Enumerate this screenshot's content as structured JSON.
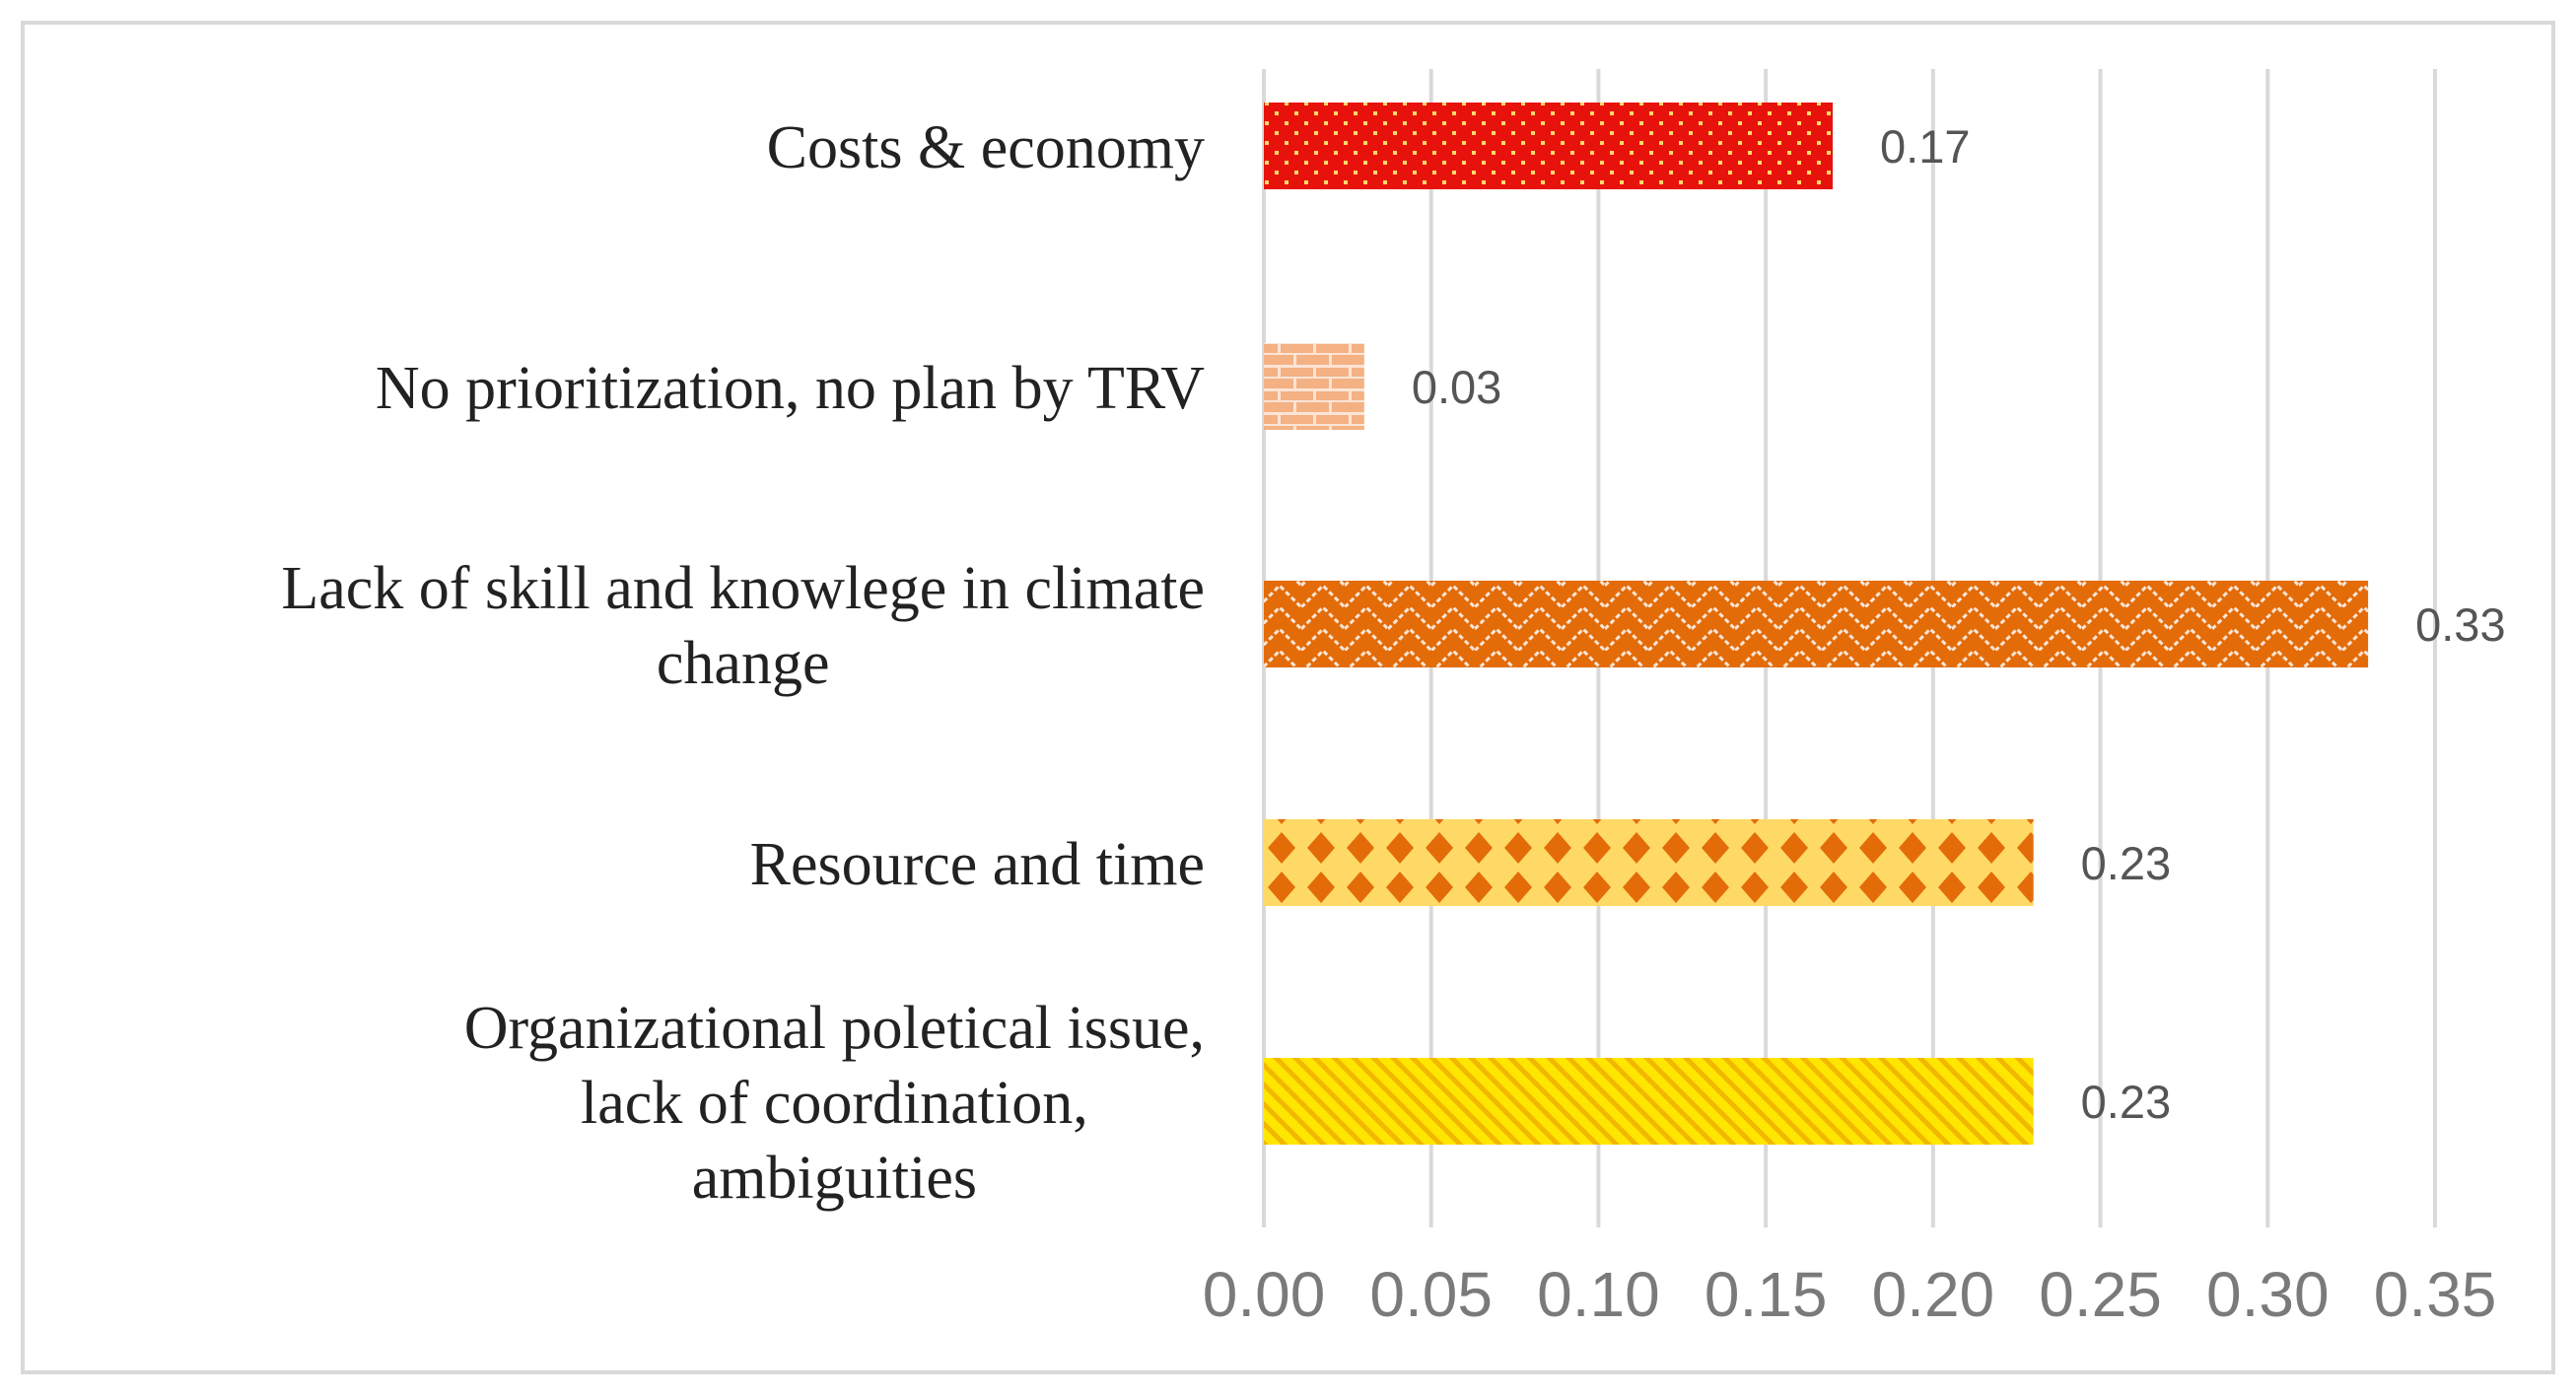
{
  "chart_data": {
    "type": "bar",
    "orientation": "horizontal",
    "title": "",
    "xlabel": "",
    "ylabel": "",
    "xlim": [
      0,
      0.35
    ],
    "x_ticks": [
      {
        "value": 0.0,
        "label": "0.00"
      },
      {
        "value": 0.05,
        "label": "0.05"
      },
      {
        "value": 0.1,
        "label": "0.10"
      },
      {
        "value": 0.15,
        "label": "0.15"
      },
      {
        "value": 0.2,
        "label": "0.20"
      },
      {
        "value": 0.25,
        "label": "0.25"
      },
      {
        "value": 0.3,
        "label": "0.30"
      },
      {
        "value": 0.35,
        "label": "0.35"
      }
    ],
    "grid": true,
    "bars": [
      {
        "category_lines": [
          "Costs & economy"
        ],
        "value": 0.17,
        "value_label": "0.17",
        "pattern": "dots",
        "color": "#e8120c",
        "pattern_color": "#ffd966"
      },
      {
        "category_lines": [
          "No prioritization, no plan by TRV"
        ],
        "value": 0.03,
        "value_label": "0.03",
        "pattern": "bricks",
        "color": "#f4b183",
        "pattern_color": "#fce4d6"
      },
      {
        "category_lines": [
          "Lack of skill and knowlege in climate",
          "change"
        ],
        "value": 0.33,
        "value_label": "0.33",
        "pattern": "zigzag",
        "color": "#e36c09",
        "pattern_color": "#fbe5d6"
      },
      {
        "category_lines": [
          "Resource and time"
        ],
        "value": 0.23,
        "value_label": "0.23",
        "pattern": "diamonds",
        "color": "#ffd966",
        "pattern_color": "#e36c09"
      },
      {
        "category_lines": [
          "Organizational poletical issue,",
          "lack of coordination,",
          "ambiguities"
        ],
        "value": 0.23,
        "value_label": "0.23",
        "pattern": "diagonal-stripes",
        "color": "#ffe600",
        "pattern_color": "#f2b800"
      }
    ]
  }
}
